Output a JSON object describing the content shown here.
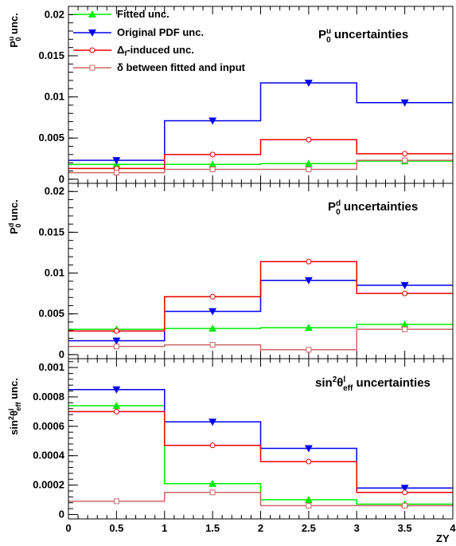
{
  "chart_data": [
    {
      "type": "line",
      "title": "P0u uncertainties",
      "ylabel": "P0u unc.",
      "xlabel": "",
      "ylim": [
        -0.0005,
        0.021
      ],
      "xlim": [
        0,
        4
      ],
      "y_ticks": [
        0,
        0.005,
        0.01,
        0.015,
        0.02
      ],
      "y_tick_labels": [
        "0",
        "0.005",
        "0.01",
        "0.015",
        "0.02"
      ],
      "x_bin_edges": [
        0,
        1,
        2,
        3,
        4
      ],
      "x_centers": [
        0.5,
        1.5,
        2.5,
        3.5
      ],
      "legend": "top-left",
      "series": [
        {
          "name": "Fitted unc.",
          "color": "#00ee00",
          "marker": "triangle-up",
          "values": [
            0.0018,
            0.0018,
            0.0019,
            0.0022
          ]
        },
        {
          "name": "Original PDF unc.",
          "color": "#0000ee",
          "marker": "triangle-down",
          "values": [
            0.0023,
            0.0071,
            0.0117,
            0.0093
          ]
        },
        {
          "name": "Δf-induced unc.",
          "color": "#ee0000",
          "marker": "circle-open",
          "values": [
            0.0013,
            0.003,
            0.0048,
            0.0031
          ]
        },
        {
          "name": "δ between fitted and input",
          "color": "#cc6666",
          "marker": "square-open",
          "values": [
            0.0008,
            0.0012,
            0.0012,
            0.0023
          ]
        }
      ]
    },
    {
      "type": "line",
      "title": "P0d uncertainties",
      "ylabel": "P0d unc.",
      "xlabel": "",
      "ylim": [
        -0.0005,
        0.021
      ],
      "xlim": [
        0,
        4
      ],
      "y_ticks": [
        0,
        0.005,
        0.01,
        0.015,
        0.02
      ],
      "y_tick_labels": [
        "0",
        "0.005",
        "0.01",
        "0.015",
        "0.02"
      ],
      "x_bin_edges": [
        0,
        1,
        2,
        3,
        4
      ],
      "x_centers": [
        0.5,
        1.5,
        2.5,
        3.5
      ],
      "series": [
        {
          "name": "Fitted unc.",
          "color": "#00ee00",
          "marker": "triangle-up",
          "values": [
            0.0031,
            0.0032,
            0.0033,
            0.0037
          ]
        },
        {
          "name": "Original PDF unc.",
          "color": "#0000ee",
          "marker": "triangle-down",
          "values": [
            0.0017,
            0.0053,
            0.0091,
            0.0085
          ]
        },
        {
          "name": "Δf-induced unc.",
          "color": "#ee0000",
          "marker": "circle-open",
          "values": [
            0.0029,
            0.0071,
            0.0114,
            0.0075
          ]
        },
        {
          "name": "δ between fitted and input",
          "color": "#cc6666",
          "marker": "square-open",
          "values": [
            0.001,
            0.0012,
            0.0006,
            0.0031
          ]
        }
      ]
    },
    {
      "type": "line",
      "title": "sin2θeffl uncertainties",
      "ylabel": "sin2θeffl unc.",
      "xlabel": "ZY",
      "ylim": [
        -3e-05,
        0.00106
      ],
      "xlim": [
        0,
        4
      ],
      "y_ticks": [
        0,
        0.0002,
        0.0004,
        0.0006,
        0.0008,
        0.001
      ],
      "y_tick_labels": [
        "0",
        "0.0002",
        "0.0004",
        "0.0006",
        "0.0008",
        "0.001"
      ],
      "x_ticks": [
        0,
        0.5,
        1,
        1.5,
        2,
        2.5,
        3,
        3.5,
        4
      ],
      "x_tick_labels": [
        "0",
        "0.5",
        "1",
        "1.5",
        "2",
        "2.5",
        "3",
        "3.5",
        "4"
      ],
      "x_bin_edges": [
        0,
        1,
        2,
        3,
        4
      ],
      "x_centers": [
        0.5,
        1.5,
        2.5,
        3.5
      ],
      "series": [
        {
          "name": "Fitted unc.",
          "color": "#00ee00",
          "marker": "triangle-up",
          "values": [
            0.00074,
            0.00021,
            0.0001,
            7e-05
          ]
        },
        {
          "name": "Original PDF unc.",
          "color": "#0000ee",
          "marker": "triangle-down",
          "values": [
            0.00085,
            0.00063,
            0.00045,
            0.00018
          ]
        },
        {
          "name": "Δf-induced unc.",
          "color": "#ee0000",
          "marker": "circle-open",
          "values": [
            0.0007,
            0.00047,
            0.00036,
            0.00015
          ]
        },
        {
          "name": "δ between fitted and input",
          "color": "#cc6666",
          "marker": "square-open",
          "values": [
            9e-05,
            0.00015,
            6e-05,
            6e-05
          ]
        }
      ]
    }
  ]
}
